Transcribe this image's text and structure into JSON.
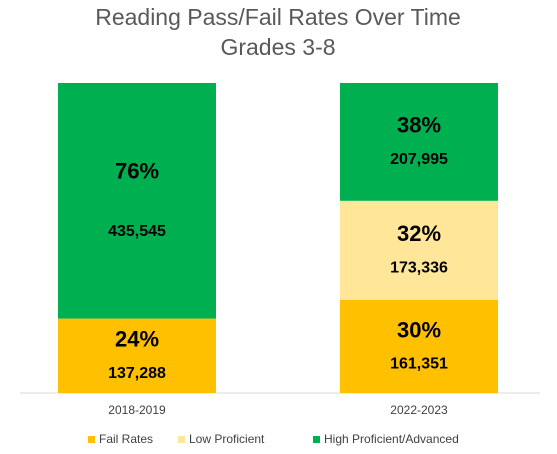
{
  "chart_data": {
    "type": "stacked_bar",
    "title": "Reading Pass/Fail Rates Over Time",
    "subtitle": "Grades 3-8",
    "categories": [
      "2018-2019",
      "2022-2023"
    ],
    "series": [
      {
        "name": "Fail Rates",
        "color": "#ffc000",
        "values": [
          24,
          30
        ],
        "value_labels": [
          "24%",
          "30%"
        ],
        "counts": [
          137288,
          161351
        ],
        "count_labels": [
          "137,288",
          "161,351"
        ]
      },
      {
        "name": "Low Proficient",
        "color": "#ffe699",
        "values": [
          null,
          32
        ],
        "value_labels": [
          null,
          "32%"
        ],
        "counts": [
          null,
          173336
        ],
        "count_labels": [
          null,
          "173,336"
        ]
      },
      {
        "name": "High Proficient/Advanced",
        "color": "#00b050",
        "values": [
          76,
          38
        ],
        "value_labels": [
          "76%",
          "38%"
        ],
        "counts": [
          435545,
          207995
        ],
        "count_labels": [
          "435,545",
          "207,995"
        ]
      }
    ]
  }
}
